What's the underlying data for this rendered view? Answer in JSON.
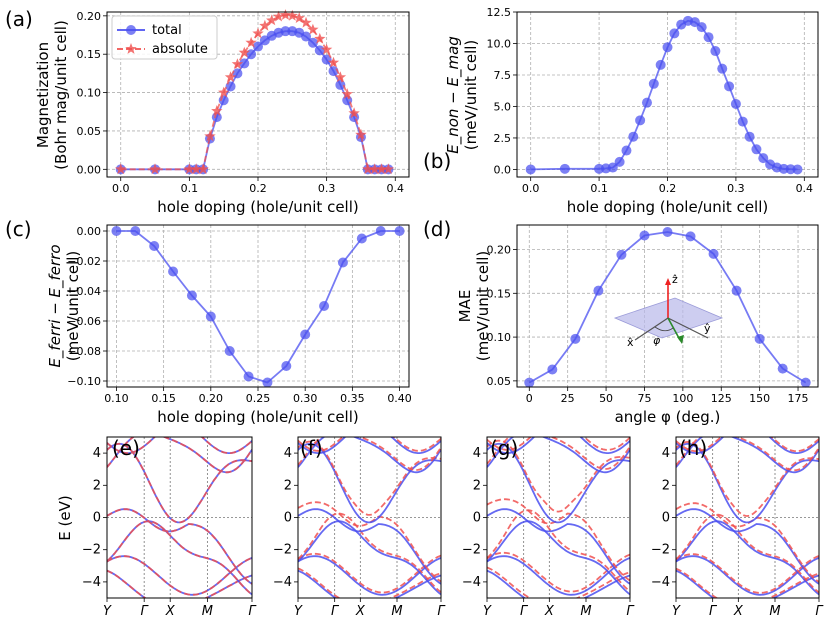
{
  "colors": {
    "total": "#4a4ff0",
    "absolute": "#f0504f",
    "grid": "#b0b0b0",
    "spin_up": "#4a4ff0",
    "spin_dn": "#f0504f",
    "purple": "#8b2a6e"
  },
  "chart_data": [
    {
      "id": "a",
      "panel_label": "(a)",
      "type": "line",
      "xlabel": "hole doping (hole/unit cell)",
      "ylabel": [
        "Magnetization",
        "(Bohr mag/unit cell)"
      ],
      "xlim": [
        -0.02,
        0.42
      ],
      "ylim": [
        -0.01,
        0.205
      ],
      "xticks": [
        0.0,
        0.1,
        0.2,
        0.3,
        0.4
      ],
      "xtick_labels": [
        "0.0",
        "0.1",
        "0.2",
        "0.3",
        "0.4"
      ],
      "yticks": [
        0.0,
        0.05,
        0.1,
        0.15,
        0.2
      ],
      "ytick_labels": [
        "0.00",
        "0.05",
        "0.10",
        "0.15",
        "0.20"
      ],
      "legend": {
        "entries": [
          "total",
          "absolute"
        ],
        "location": "top-left"
      },
      "series": [
        {
          "name": "total",
          "marker": "circle",
          "style": "solid",
          "x": [
            0.0,
            0.05,
            0.1,
            0.11,
            0.12,
            0.13,
            0.14,
            0.15,
            0.16,
            0.17,
            0.18,
            0.19,
            0.2,
            0.21,
            0.22,
            0.23,
            0.24,
            0.25,
            0.26,
            0.27,
            0.28,
            0.29,
            0.3,
            0.31,
            0.32,
            0.33,
            0.34,
            0.35,
            0.36,
            0.37,
            0.38,
            0.39
          ],
          "values": [
            0.0,
            0.0,
            0.0,
            0.0,
            0.0,
            0.04,
            0.068,
            0.09,
            0.108,
            0.125,
            0.138,
            0.15,
            0.16,
            0.168,
            0.174,
            0.178,
            0.18,
            0.18,
            0.178,
            0.173,
            0.165,
            0.155,
            0.143,
            0.128,
            0.11,
            0.09,
            0.068,
            0.042,
            0.0,
            0.0,
            0.0,
            0.0
          ]
        },
        {
          "name": "absolute",
          "marker": "star",
          "style": "dashed",
          "x": [
            0.0,
            0.05,
            0.1,
            0.11,
            0.12,
            0.13,
            0.14,
            0.15,
            0.16,
            0.17,
            0.18,
            0.19,
            0.2,
            0.21,
            0.22,
            0.23,
            0.24,
            0.25,
            0.26,
            0.27,
            0.28,
            0.29,
            0.3,
            0.31,
            0.32,
            0.33,
            0.34,
            0.35,
            0.36,
            0.37,
            0.38,
            0.39
          ],
          "values": [
            0.0,
            0.0,
            0.0,
            0.0,
            0.0,
            0.043,
            0.076,
            0.1,
            0.12,
            0.137,
            0.152,
            0.165,
            0.177,
            0.187,
            0.194,
            0.199,
            0.201,
            0.2,
            0.197,
            0.191,
            0.182,
            0.17,
            0.156,
            0.139,
            0.12,
            0.098,
            0.073,
            0.045,
            0.0,
            0.0,
            0.0,
            0.0
          ]
        }
      ]
    },
    {
      "id": "b",
      "panel_label": "(b)",
      "type": "line",
      "xlabel": "hole doping (hole/unit cell)",
      "ylabel": [
        "E_non − E_mag",
        "(meV/unit cell)"
      ],
      "xlim": [
        -0.02,
        0.42
      ],
      "ylim": [
        -0.6,
        12.5
      ],
      "xticks": [
        0.0,
        0.1,
        0.2,
        0.3,
        0.4
      ],
      "xtick_labels": [
        "0.0",
        "0.1",
        "0.2",
        "0.3",
        "0.4"
      ],
      "yticks": [
        0.0,
        2.5,
        5.0,
        7.5,
        10.0,
        12.5
      ],
      "ytick_labels": [
        "0.0",
        "2.5",
        "5.0",
        "7.5",
        "10.0",
        "12.5"
      ],
      "series": [
        {
          "name": "energy",
          "marker": "circle",
          "style": "solid",
          "x": [
            0.0,
            0.05,
            0.1,
            0.11,
            0.12,
            0.13,
            0.14,
            0.15,
            0.16,
            0.17,
            0.18,
            0.19,
            0.2,
            0.21,
            0.22,
            0.23,
            0.24,
            0.25,
            0.26,
            0.27,
            0.28,
            0.29,
            0.3,
            0.31,
            0.32,
            0.33,
            0.34,
            0.35,
            0.36,
            0.37,
            0.38,
            0.39
          ],
          "values": [
            0.0,
            0.05,
            0.05,
            0.08,
            0.15,
            0.6,
            1.5,
            2.6,
            3.9,
            5.3,
            6.8,
            8.3,
            9.7,
            10.8,
            11.5,
            11.8,
            11.7,
            11.3,
            10.5,
            9.4,
            8.0,
            6.6,
            5.2,
            3.8,
            2.6,
            1.6,
            0.9,
            0.4,
            0.15,
            0.05,
            0.02,
            0.0
          ]
        }
      ]
    },
    {
      "id": "c",
      "panel_label": "(c)",
      "type": "line",
      "xlabel": "hole doping (hole/unit cell)",
      "ylabel": [
        "E_ferri − E_ferro",
        "(meV/unit cell)"
      ],
      "xlim": [
        0.09,
        0.41
      ],
      "ylim": [
        -0.104,
        0.004
      ],
      "xticks": [
        0.1,
        0.15,
        0.2,
        0.25,
        0.3,
        0.35,
        0.4
      ],
      "xtick_labels": [
        "0.10",
        "0.15",
        "0.20",
        "0.25",
        "0.30",
        "0.35",
        "0.40"
      ],
      "yticks": [
        0.0,
        -0.02,
        -0.04,
        -0.06,
        -0.08,
        -0.1
      ],
      "ytick_labels": [
        "0.00",
        "−0.02",
        "−0.04",
        "−0.06",
        "−0.08",
        "−0.10"
      ],
      "series": [
        {
          "name": "energy",
          "marker": "circle",
          "style": "solid",
          "x": [
            0.1,
            0.12,
            0.14,
            0.16,
            0.18,
            0.2,
            0.22,
            0.24,
            0.26,
            0.28,
            0.3,
            0.32,
            0.34,
            0.36,
            0.38,
            0.4
          ],
          "values": [
            0.0,
            0.0,
            -0.01,
            -0.027,
            -0.043,
            -0.057,
            -0.08,
            -0.097,
            -0.101,
            -0.09,
            -0.069,
            -0.05,
            -0.021,
            -0.005,
            0.0,
            0.0
          ]
        }
      ]
    },
    {
      "id": "d",
      "panel_label": "(d)",
      "type": "line",
      "xlabel": "angle φ (deg.)",
      "ylabel": [
        "MAE",
        "(meV/unit cell)"
      ],
      "xlim": [
        -8,
        188
      ],
      "ylim": [
        0.043,
        0.228
      ],
      "xticks": [
        0,
        25,
        50,
        75,
        100,
        125,
        150,
        175
      ],
      "xtick_labels": [
        "0",
        "25",
        "50",
        "75",
        "100",
        "125",
        "150",
        "175"
      ],
      "yticks": [
        0.05,
        0.1,
        0.15,
        0.2
      ],
      "ytick_labels": [
        "0.05",
        "0.10",
        "0.15",
        "0.20"
      ],
      "inset_labels": {
        "z": "ẑ",
        "x": "x̂",
        "y": "ŷ",
        "phi": "φ"
      },
      "series": [
        {
          "name": "MAE",
          "marker": "circle",
          "style": "solid",
          "x": [
            0,
            15,
            30,
            45,
            60,
            75,
            90,
            105,
            120,
            135,
            150,
            165,
            180
          ],
          "values": [
            0.048,
            0.063,
            0.098,
            0.153,
            0.194,
            0.216,
            0.22,
            0.215,
            0.195,
            0.153,
            0.098,
            0.064,
            0.048
          ]
        }
      ]
    },
    {
      "id": "e",
      "panel_label": "(e)",
      "type": "band-structure",
      "ylabel": "E (eV)",
      "ylim": [
        -5,
        5
      ],
      "yticks": [
        4,
        2,
        0,
        -2,
        -4
      ],
      "ytick_labels": [
        "4",
        "2",
        "0",
        "−2",
        "−4"
      ],
      "kpoints": [
        "Y",
        "Γ",
        "X",
        "M",
        "Γ"
      ],
      "kpos": [
        0,
        1,
        1.7,
        2.7,
        3.9
      ],
      "split": 0.0
    },
    {
      "id": "f",
      "panel_label": "(f)",
      "type": "band-structure",
      "ylim": [
        -5,
        5
      ],
      "yticks": [
        4,
        2,
        0,
        -2,
        -4
      ],
      "ytick_labels": [
        "4",
        "2",
        "0",
        "−2",
        "−4"
      ],
      "kpoints": [
        "Y",
        "Γ",
        "X",
        "M",
        "Γ"
      ],
      "kpos": [
        0,
        1,
        1.7,
        2.7,
        3.9
      ],
      "split": 0.35
    },
    {
      "id": "g",
      "panel_label": "(g)",
      "type": "band-structure",
      "ylim": [
        -5,
        5
      ],
      "yticks": [
        4,
        2,
        0,
        -2,
        -4
      ],
      "ytick_labels": [
        "4",
        "2",
        "0",
        "−2",
        "−4"
      ],
      "kpoints": [
        "Y",
        "Γ",
        "X",
        "M",
        "Γ"
      ],
      "kpos": [
        0,
        1,
        1.7,
        2.7,
        3.9
      ],
      "split": 0.5
    },
    {
      "id": "h",
      "panel_label": "(h)",
      "type": "band-structure",
      "ylim": [
        -5,
        5
      ],
      "yticks": [
        4,
        2,
        0,
        -2,
        -4
      ],
      "ytick_labels": [
        "4",
        "2",
        "0",
        "−2",
        "−4"
      ],
      "kpoints": [
        "Y",
        "Γ",
        "X",
        "M",
        "Γ"
      ],
      "kpos": [
        0,
        1,
        1.7,
        2.7,
        3.9
      ],
      "split": 0.3
    }
  ]
}
